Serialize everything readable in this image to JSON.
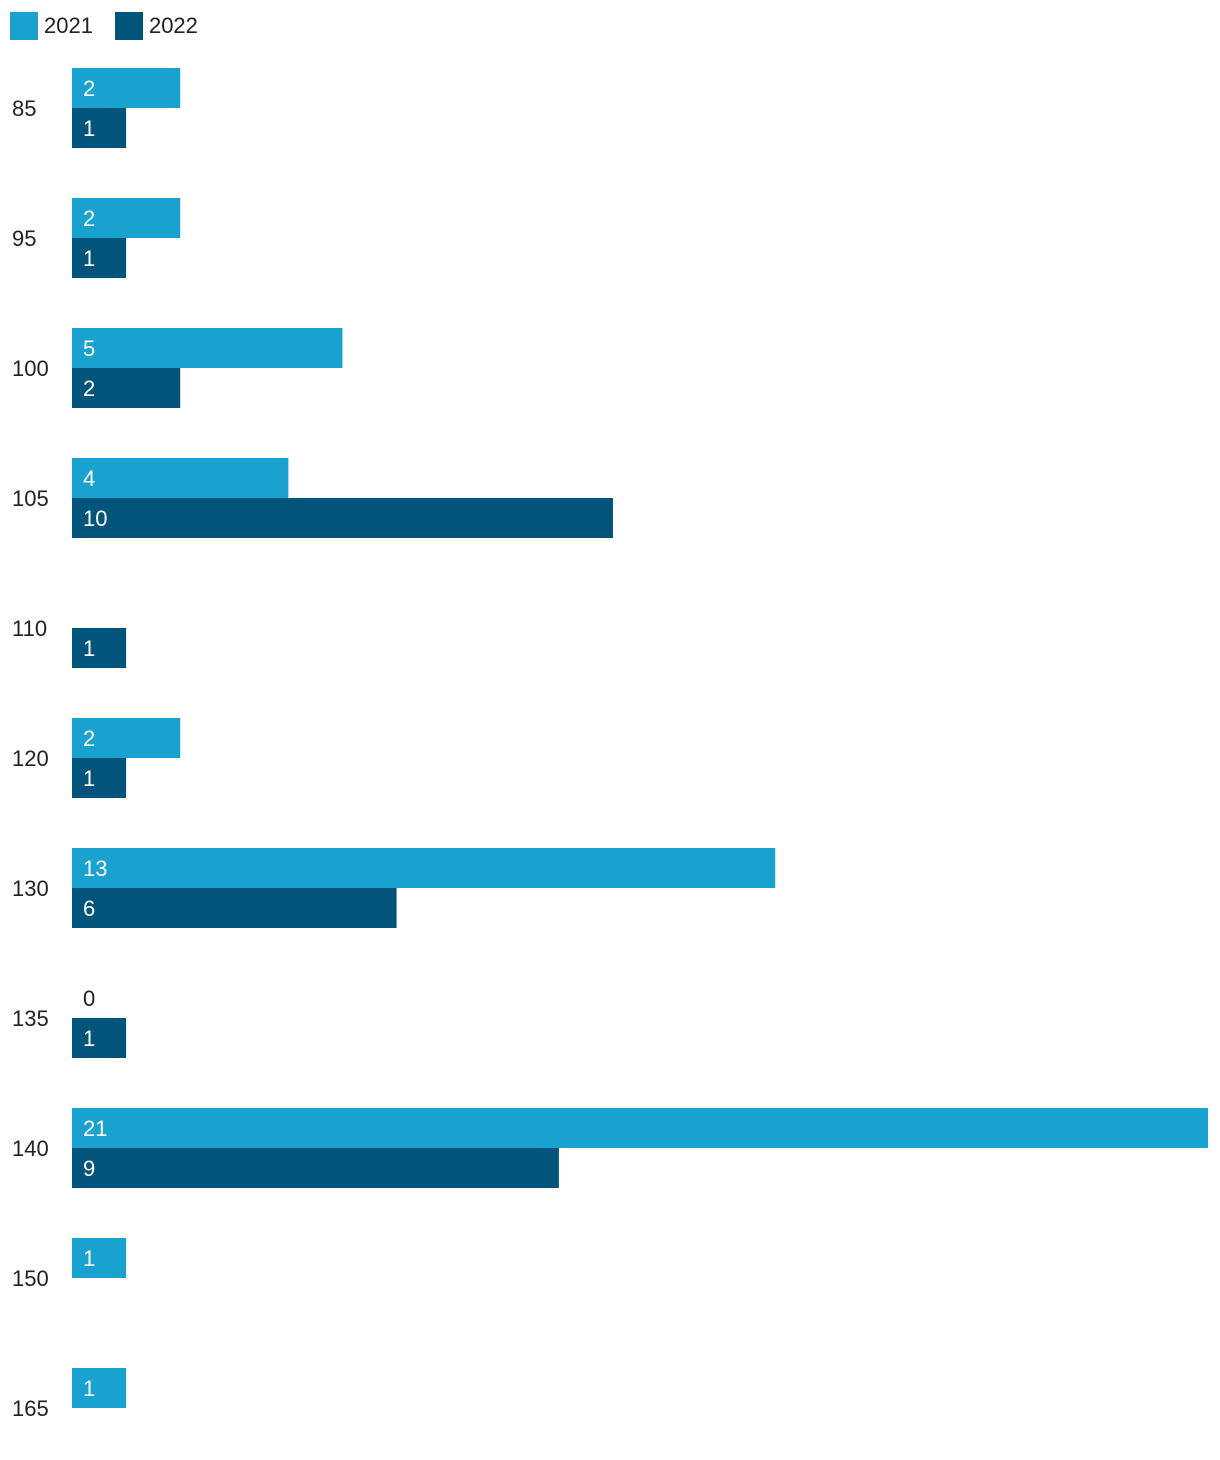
{
  "chart_data": {
    "type": "bar",
    "orientation": "horizontal",
    "categories": [
      "85",
      "95",
      "100",
      "105",
      "110",
      "120",
      "130",
      "135",
      "140",
      "150",
      "165"
    ],
    "series": [
      {
        "name": "2021",
        "color": "#19a1cf",
        "values": [
          2,
          2,
          5,
          4,
          null,
          2,
          13,
          0,
          21,
          1,
          1
        ]
      },
      {
        "name": "2022",
        "color": "#02547a",
        "values": [
          1,
          1,
          2,
          10,
          1,
          1,
          6,
          1,
          9,
          null,
          null
        ]
      }
    ],
    "data_labels": true,
    "legend_position": "top-left",
    "grid": false,
    "xlim": [
      0,
      21
    ]
  }
}
